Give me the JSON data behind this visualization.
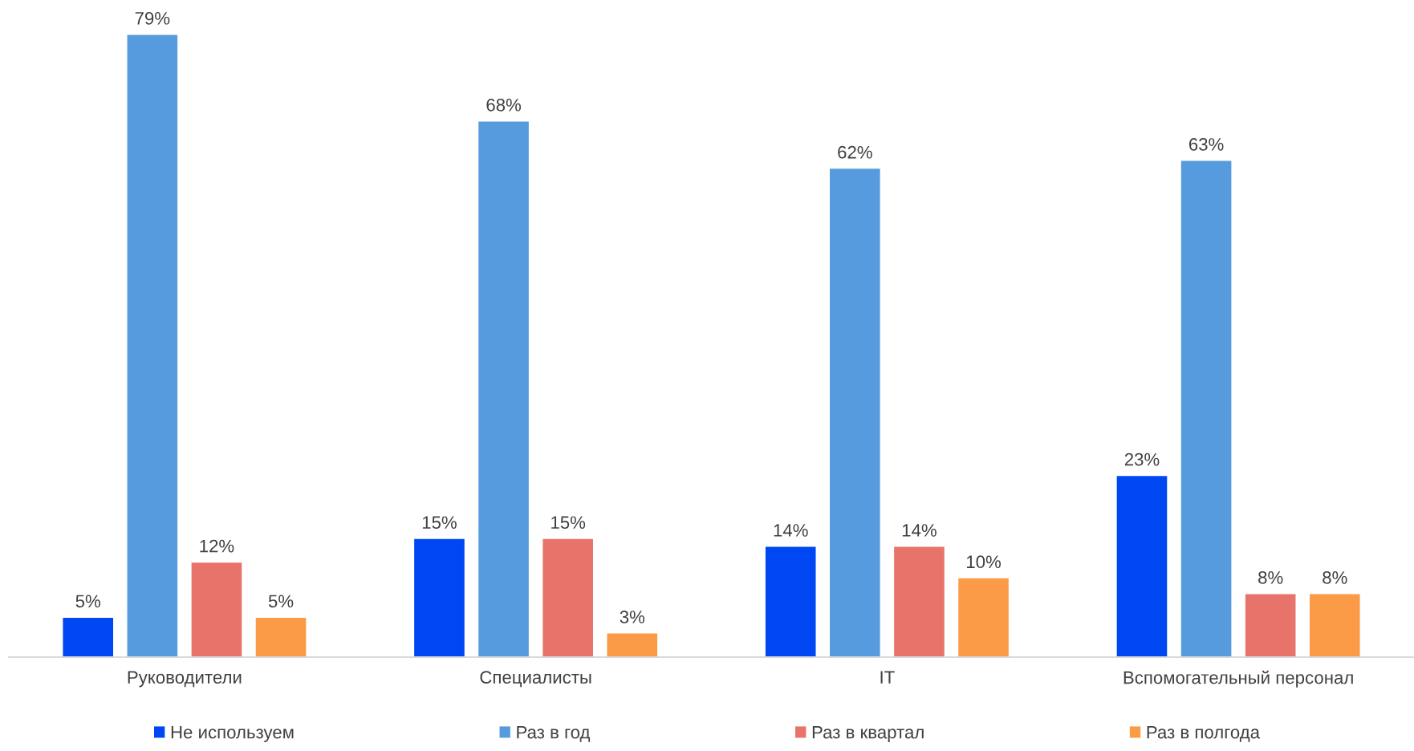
{
  "chart_data": {
    "type": "bar",
    "categories": [
      "Руководители",
      "Специалисты",
      "IT",
      "Вспомогательный персонал"
    ],
    "series": [
      {
        "name": "Не используем",
        "color": "#0047F4",
        "values": [
          5,
          15,
          14,
          23
        ],
        "value_labels": [
          "5%",
          "15%",
          "14%",
          "23%"
        ]
      },
      {
        "name": "Раз в год",
        "color": "#569BDD",
        "values": [
          79,
          68,
          62,
          63
        ],
        "value_labels": [
          "79%",
          "68%",
          "62%",
          "63%"
        ]
      },
      {
        "name": "Раз в квартал",
        "color": "#E7736A",
        "values": [
          12,
          15,
          14,
          8
        ],
        "value_labels": [
          "12%",
          "15%",
          "14%",
          "8%"
        ]
      },
      {
        "name": "Раз в полгода",
        "color": "#FB9A47",
        "values": [
          5,
          3,
          10,
          8
        ],
        "value_labels": [
          "5%",
          "3%",
          "10%",
          "8%"
        ]
      }
    ],
    "legend": "bottom",
    "grid": false,
    "tick_labels": "x"
  }
}
